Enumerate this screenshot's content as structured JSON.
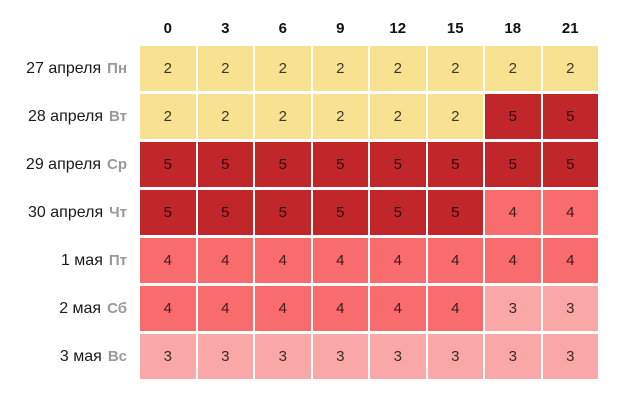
{
  "page": {
    "background": "#ffffff"
  },
  "chart_data": {
    "type": "heatmap",
    "columns": [
      "0",
      "3",
      "6",
      "9",
      "12",
      "15",
      "18",
      "21"
    ],
    "rows": [
      {
        "date": "27 апреля",
        "weekday": "Пн",
        "values": [
          2,
          2,
          2,
          2,
          2,
          2,
          2,
          2
        ]
      },
      {
        "date": "28 апреля",
        "weekday": "Вт",
        "values": [
          2,
          2,
          2,
          2,
          2,
          2,
          5,
          5
        ]
      },
      {
        "date": "29 апреля",
        "weekday": "Ср",
        "values": [
          5,
          5,
          5,
          5,
          5,
          5,
          5,
          5
        ]
      },
      {
        "date": "30 апреля",
        "weekday": "Чт",
        "values": [
          5,
          5,
          5,
          5,
          5,
          5,
          4,
          4
        ]
      },
      {
        "date": "1 мая",
        "weekday": "Пт",
        "values": [
          4,
          4,
          4,
          4,
          4,
          4,
          4,
          4
        ]
      },
      {
        "date": "2 мая",
        "weekday": "Сб",
        "values": [
          4,
          4,
          4,
          4,
          4,
          4,
          3,
          3
        ]
      },
      {
        "date": "3 мая",
        "weekday": "Вс",
        "values": [
          3,
          3,
          3,
          3,
          3,
          3,
          3,
          3
        ]
      }
    ],
    "value_colors": {
      "2": "#F8E191",
      "3": "#F9A7A7",
      "4": "#F96C6E",
      "5": "#C0262A"
    },
    "label_colors": {
      "date": "#1a1a1a",
      "weekday": "#999999",
      "hour": "#111111"
    },
    "legend_position": "none",
    "grid": false
  }
}
